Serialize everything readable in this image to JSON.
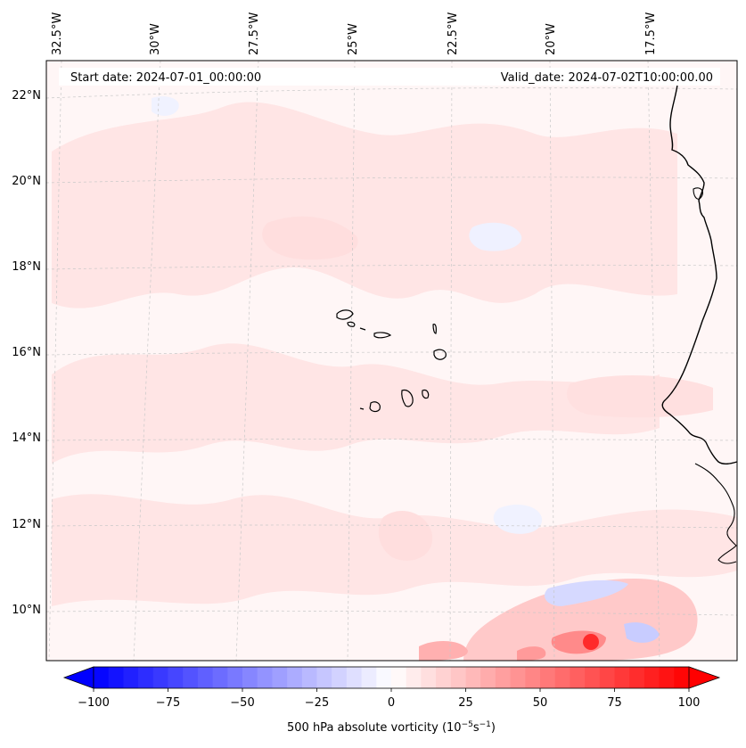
{
  "map": {
    "header": {
      "start_date": "Start date: 2024-07-01_00:00:00",
      "valid_date": "Valid_date: 2024-07-02T10:00:00.00"
    },
    "longitude_labels": [
      "32.5°W",
      "30°W",
      "27.5°W",
      "25°W",
      "22.5°W",
      "20°W",
      "17.5°W"
    ],
    "latitude_labels": [
      "22°N",
      "20°N",
      "18°N",
      "16°N",
      "14°N",
      "12°N",
      "10°N"
    ],
    "colorbar": {
      "label": "500 hPa absolute vorticity (10",
      "label_exp1": "−5",
      "label_mid": "s",
      "label_exp2": "−1",
      "label_end": ")",
      "ticks": [
        "−100",
        "−75",
        "−50",
        "−25",
        "0",
        "25",
        "50",
        "75",
        "100"
      ],
      "min": -100,
      "max": 100,
      "negative_color": "#0000ff",
      "positive_color": "#ff0000"
    },
    "colors": {
      "background_field": "#fff5f5",
      "positive_light": "#ffe3e3",
      "positive_mid": "#ffc8c8",
      "positive_strong": "#ff2a2a",
      "negative_light": "#eef0ff",
      "negative_mid": "#c8ccff",
      "coastline": "#000000"
    }
  }
}
